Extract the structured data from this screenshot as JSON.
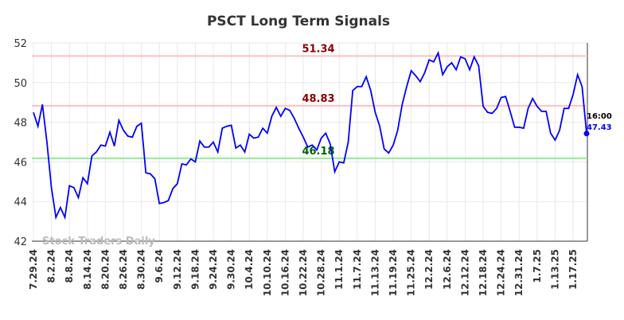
{
  "chart_data": {
    "type": "line",
    "title": "PSCT Long Term Signals",
    "watermark": "Stock Traders Daily",
    "categories": [
      "7.29.24",
      null,
      null,
      null,
      "8.2.24",
      null,
      null,
      null,
      "8.8.24",
      null,
      null,
      null,
      "8.14.24",
      null,
      null,
      null,
      "8.20.24",
      null,
      null,
      null,
      "8.26.24",
      null,
      null,
      null,
      "8.30.24",
      null,
      null,
      null,
      "9.6.24",
      null,
      null,
      null,
      "9.12.24",
      null,
      null,
      null,
      "9.18.24",
      null,
      null,
      null,
      "9.24.24",
      null,
      null,
      null,
      "9.30.24",
      null,
      null,
      null,
      "10.4.24",
      null,
      null,
      null,
      "10.10.24",
      null,
      null,
      null,
      "10.16.24",
      null,
      null,
      null,
      "10.22.24",
      null,
      null,
      null,
      "10.28.24",
      null,
      null,
      null,
      "11.1.24",
      null,
      null,
      null,
      "11.7.24",
      null,
      null,
      null,
      "11.13.24",
      null,
      null,
      null,
      "11.19.24",
      null,
      null,
      null,
      "11.25.24",
      null,
      null,
      null,
      "12.2.24",
      null,
      null,
      null,
      "12.6.24",
      null,
      null,
      null,
      "12.12.24",
      null,
      null,
      null,
      "12.18.24",
      null,
      null,
      null,
      "12.24.24",
      null,
      null,
      null,
      "12.31.24",
      null,
      null,
      null,
      "1.7.25",
      null,
      null,
      null,
      "1.13.25",
      null,
      null,
      null,
      "1.17.25",
      null,
      null,
      null
    ],
    "series": [
      {
        "color": "#0000ff",
        "values": [
          48.5,
          47.8,
          48.9,
          47.0,
          44.7,
          43.2,
          43.7,
          43.2,
          44.8,
          44.7,
          44.2,
          45.2,
          44.9,
          46.3,
          46.5,
          46.85,
          46.8,
          47.5,
          46.8,
          48.1,
          47.6,
          47.3,
          47.25,
          47.8,
          47.95,
          45.45,
          45.4,
          45.15,
          43.9,
          43.95,
          44.05,
          44.65,
          44.9,
          45.9,
          45.85,
          46.15,
          46.0,
          47.05,
          46.75,
          46.75,
          47.0,
          46.5,
          47.7,
          47.8,
          47.85,
          46.7,
          46.85,
          46.5,
          47.4,
          47.2,
          47.25,
          47.7,
          47.45,
          48.3,
          48.75,
          48.3,
          48.7,
          48.6,
          48.2,
          47.7,
          47.25,
          46.75,
          46.85,
          46.6,
          47.2,
          47.45,
          46.9,
          45.5,
          46.0,
          45.95,
          47.0,
          49.6,
          49.8,
          49.8,
          50.3,
          49.6,
          48.5,
          47.8,
          46.65,
          46.45,
          46.85,
          47.6,
          48.9,
          49.8,
          50.6,
          50.35,
          50.05,
          50.5,
          51.15,
          51.05,
          51.5,
          50.4,
          50.8,
          51.0,
          50.65,
          51.3,
          51.2,
          50.65,
          51.3,
          50.85,
          48.8,
          48.5,
          48.45,
          48.7,
          49.25,
          49.3,
          48.55,
          47.75,
          47.75,
          47.7,
          48.7,
          49.2,
          48.8,
          48.55,
          48.55,
          47.45,
          47.1,
          47.6,
          48.7,
          48.7,
          49.4,
          50.4,
          49.8,
          47.43
        ]
      }
    ],
    "hlines": [
      {
        "value": 51.34,
        "color": "#ffc0c0",
        "label_color": "#8b0000"
      },
      {
        "value": 48.83,
        "color": "#ffc0c0",
        "label_color": "#8b0000"
      },
      {
        "value": 46.18,
        "color": "#90ee90",
        "label_color": "#006400"
      }
    ],
    "last_label": {
      "time": "16:00",
      "value": 47.43
    },
    "ylim": [
      42,
      52
    ],
    "yticks": [
      42,
      44,
      46,
      48,
      50,
      52
    ],
    "grid": true
  }
}
